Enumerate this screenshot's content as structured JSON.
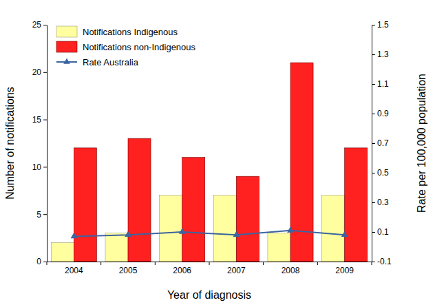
{
  "chart_data": {
    "type": "bar",
    "x_label": "Year of diagnosis",
    "y_label": "Number of notifications",
    "y2_label": "Rate per 100,000 population",
    "categories": [
      "2004",
      "2005",
      "2006",
      "2007",
      "2008",
      "2009"
    ],
    "series": [
      {
        "name": "Notifications Indigenous",
        "type": "bar",
        "color": "#ffffa0",
        "values": [
          2,
          3,
          7,
          7,
          3,
          7
        ]
      },
      {
        "name": "Notifications non-Indigenous",
        "type": "bar",
        "color": "#ff2020",
        "values": [
          12,
          13,
          11,
          9,
          21,
          12
        ]
      },
      {
        "name": "Rate Australia",
        "type": "line",
        "axis": "y2",
        "color": "#3b64a0",
        "marker": "triangle",
        "values": [
          0.07,
          0.08,
          0.1,
          0.08,
          0.11,
          0.08
        ]
      }
    ],
    "ylim": [
      0,
      25
    ],
    "yticks": [
      0,
      5,
      10,
      15,
      20,
      25
    ],
    "y2lim": [
      -0.1,
      1.5
    ],
    "y2ticks": [
      -0.1,
      0.1,
      0.3,
      0.5,
      0.7,
      0.9,
      1.1,
      1.3,
      1.5
    ],
    "legend": "top-left"
  }
}
